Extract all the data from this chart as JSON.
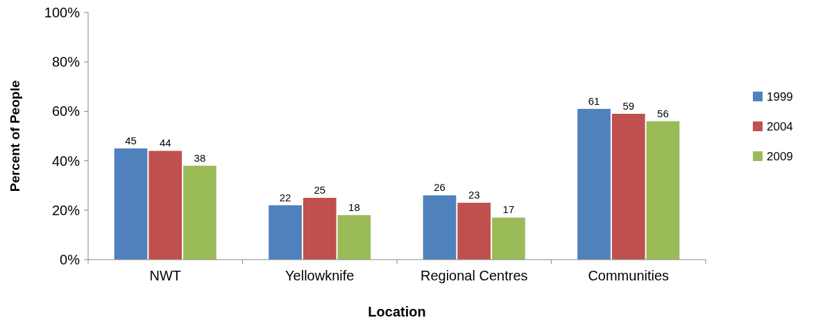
{
  "chart_data": {
    "type": "bar",
    "xlabel": "Location",
    "ylabel": "Percent of People",
    "categories": [
      "NWT",
      "Yellowknife",
      "Regional Centres",
      "Communities"
    ],
    "series": [
      {
        "name": "1999",
        "color": "#4f81bd",
        "values": [
          45,
          22,
          26,
          61
        ]
      },
      {
        "name": "2004",
        "color": "#c0504d",
        "values": [
          44,
          25,
          23,
          59
        ]
      },
      {
        "name": "2009",
        "color": "#9bbb59",
        "values": [
          38,
          18,
          17,
          56
        ]
      }
    ],
    "ylim": [
      0,
      100
    ],
    "yticks": [
      {
        "value": 0,
        "label": "0%"
      },
      {
        "value": 20,
        "label": "20%"
      },
      {
        "value": 40,
        "label": "40%"
      },
      {
        "value": 60,
        "label": "60%"
      },
      {
        "value": 80,
        "label": "80%"
      },
      {
        "value": 100,
        "label": "100%"
      }
    ],
    "data_labels": true,
    "legend": "right",
    "grid": false
  }
}
